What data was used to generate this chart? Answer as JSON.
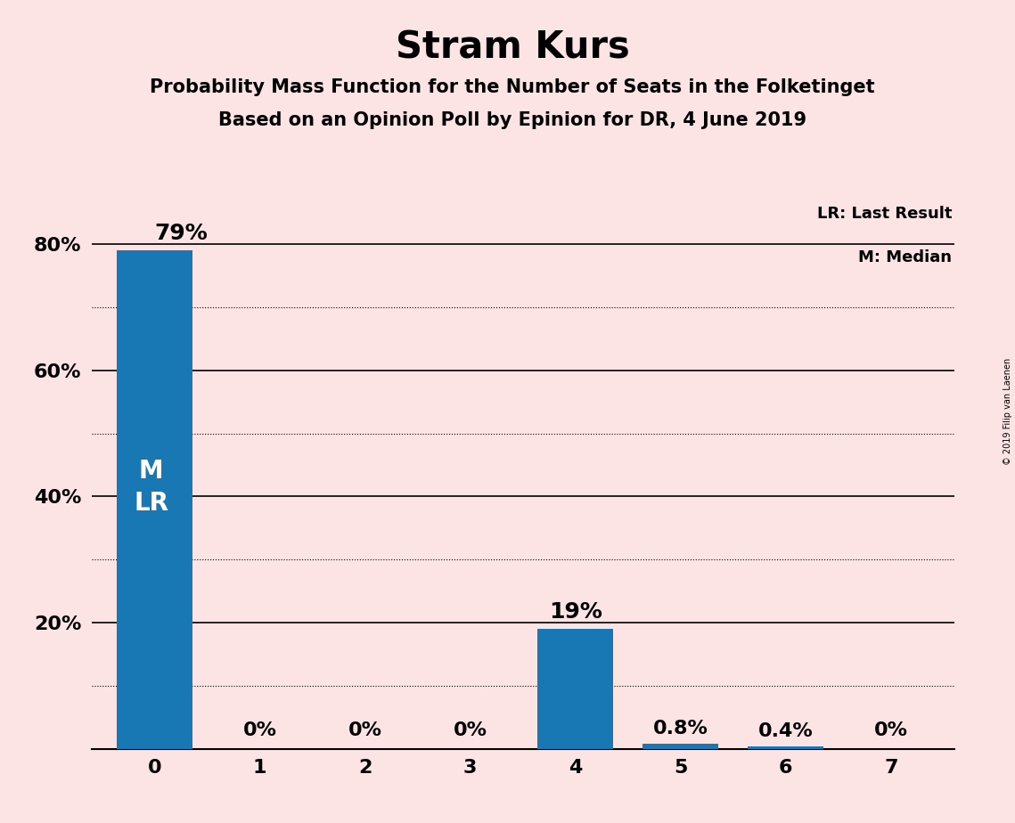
{
  "title": "Stram Kurs",
  "subtitle1": "Probability Mass Function for the Number of Seats in the Folketinget",
  "subtitle2": "Based on an Opinion Poll by Epinion for DR, 4 June 2019",
  "copyright": "© 2019 Filip van Laenen",
  "legend_lr": "LR: Last Result",
  "legend_m": "M: Median",
  "categories": [
    0,
    1,
    2,
    3,
    4,
    5,
    6,
    7
  ],
  "values": [
    79,
    0,
    0,
    0,
    19,
    0.8,
    0.4,
    0
  ],
  "bar_color": "#1878b4",
  "background_color": "#fce4e4",
  "bar_labels": [
    "79%",
    "0%",
    "0%",
    "0%",
    "19%",
    "0.8%",
    "0.4%",
    "0%"
  ],
  "ylim": [
    0,
    90
  ],
  "yticks": [
    20,
    40,
    60,
    80
  ],
  "ytick_labels": [
    "20%",
    "40%",
    "60%",
    "80%"
  ],
  "solid_grid_lines": [
    20,
    40,
    60,
    80
  ],
  "dotted_grid_lines": [
    10,
    30,
    50,
    70
  ],
  "bar_label_fontsize": 16,
  "title_fontsize": 30,
  "subtitle_fontsize": 15,
  "axis_fontsize": 16,
  "m_lr_fontsize": 20
}
